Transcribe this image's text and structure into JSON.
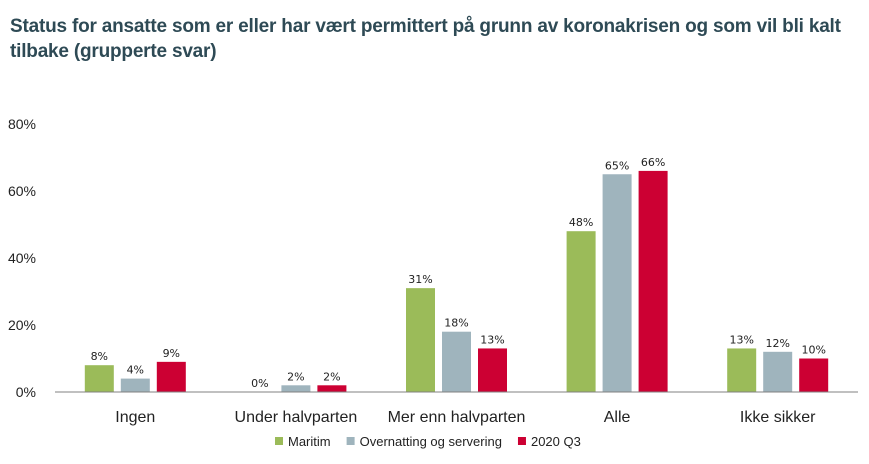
{
  "chart_data": {
    "type": "bar",
    "title": "Status for ansatte som er eller har vært permittert på grunn av koronakrisen og som vil bli kalt tilbake (grupperte svar)",
    "xlabel": "",
    "ylabel": "",
    "categories": [
      "Ingen",
      "Under halvparten",
      "Mer enn halvparten",
      "Alle",
      "Ikke sikker"
    ],
    "series": [
      {
        "name": "Maritim",
        "color": "#9bbb59",
        "values": [
          8,
          0,
          31,
          48,
          13
        ]
      },
      {
        "name": "Overnatting og servering",
        "color": "#9fb4bd",
        "values": [
          4,
          2,
          18,
          65,
          12
        ]
      },
      {
        "name": "2020 Q3",
        "color": "#cc0033",
        "values": [
          9,
          2,
          13,
          66,
          10
        ]
      }
    ],
    "ylim": [
      0,
      80
    ],
    "yticks": [
      0,
      20,
      40,
      60,
      80
    ],
    "value_suffix": "%",
    "grid": false,
    "legend_position": "bottom"
  }
}
